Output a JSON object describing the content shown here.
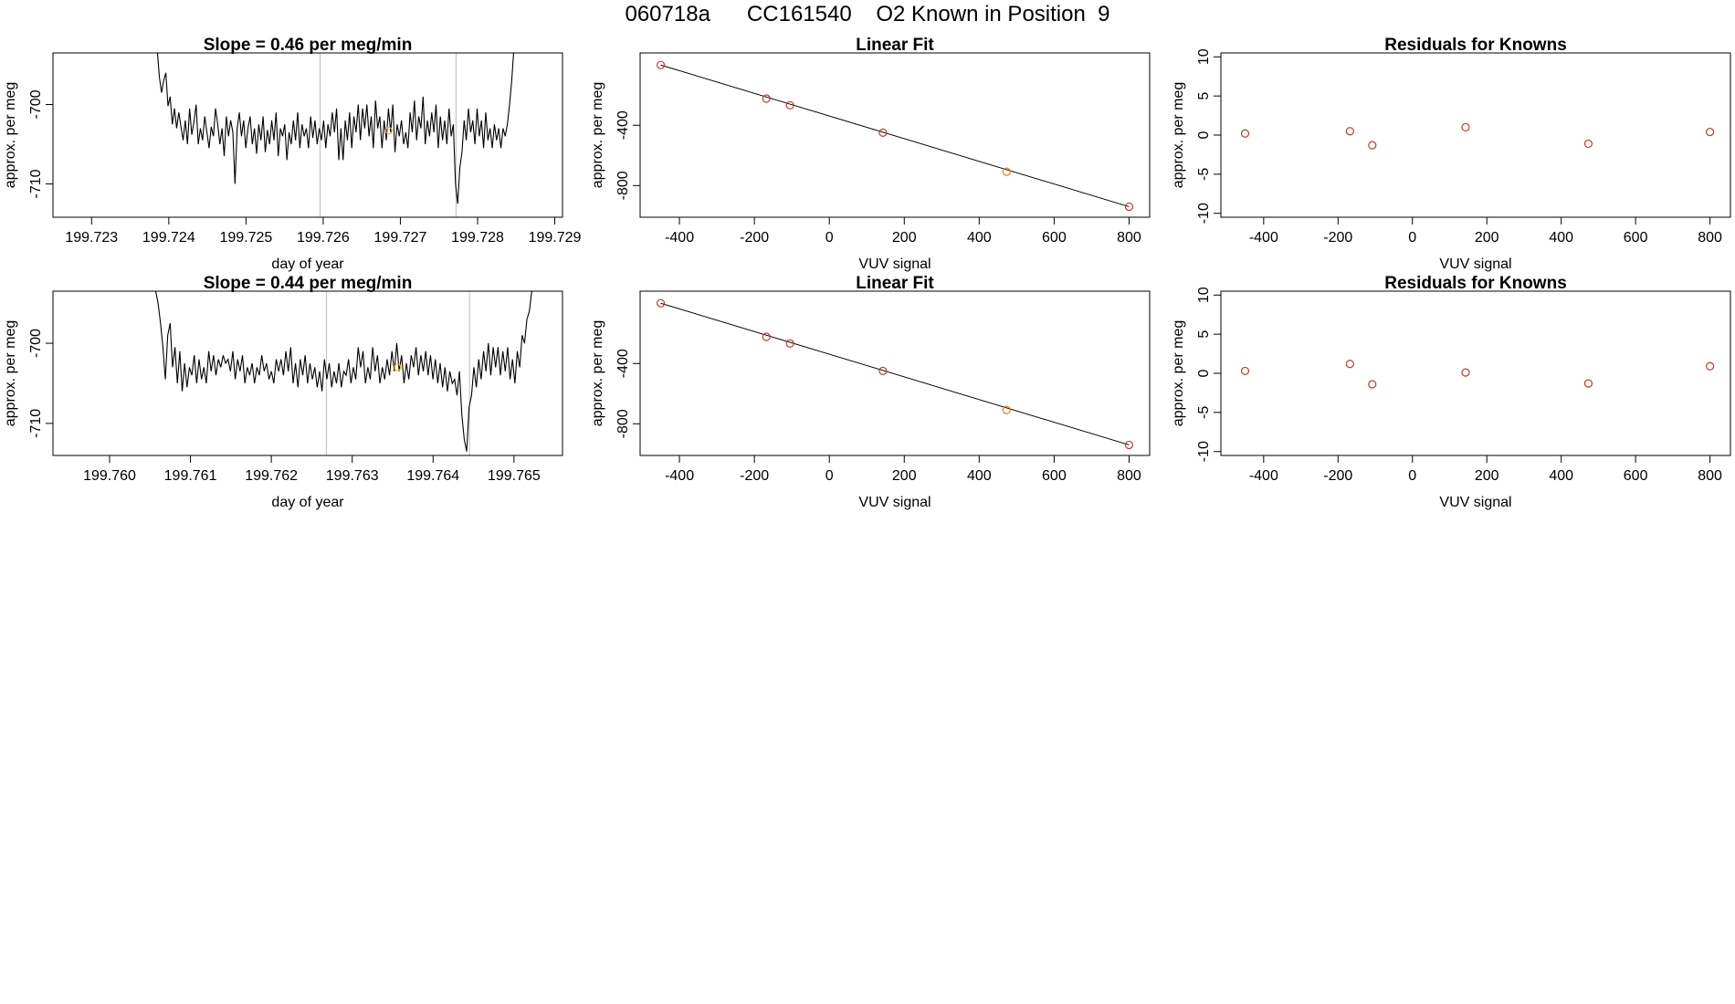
{
  "page": {
    "title": "060718a      CC161540    O2 Known in Position  9"
  },
  "chart_data": [
    {
      "type": "line",
      "title": "Slope =  0.46  per meg/min",
      "xlabel": "day of year",
      "ylabel": "approx. per meg",
      "xlim": [
        199.7225,
        199.7291
      ],
      "ylim": [
        -714.2,
        -693.5
      ],
      "xticks": [
        199.723,
        199.724,
        199.725,
        199.726,
        199.727,
        199.728,
        199.729
      ],
      "xtick_labels": [
        "199.723",
        "199.724",
        "199.725",
        "199.726",
        "199.727",
        "199.728",
        "199.729"
      ],
      "yticks": [
        -710,
        -700
      ],
      "ytick_labels": [
        "-710",
        "-700"
      ],
      "vlines": [
        199.72596,
        199.72772
      ],
      "t_start": 199.72385,
      "t_end": 199.72847,
      "series": [
        {
          "values": [
            -693.0,
            -696.5,
            -698.5,
            -697.0,
            -696.0,
            -700.2,
            -699.0,
            -702.5,
            -700.5,
            -703.0,
            -701.0,
            -702.8,
            -704.5,
            -702.0,
            -705.0,
            -700.5,
            -703.8,
            -702.2,
            -700.0,
            -705.0,
            -703.0,
            -704.5,
            -701.5,
            -703.5,
            -705.5,
            -702.8,
            -704.0,
            -700.5,
            -702.5,
            -705.0,
            -703.0,
            -706.5,
            -701.5,
            -704.0,
            -702.0,
            -703.5,
            -710.0,
            -703.0,
            -701.0,
            -704.0,
            -702.0,
            -705.5,
            -703.0,
            -701.5,
            -705.0,
            -703.0,
            -706.2,
            -702.5,
            -704.5,
            -701.5,
            -706.0,
            -703.2,
            -705.0,
            -702.0,
            -704.5,
            -701.0,
            -706.5,
            -703.0,
            -704.0,
            -702.5,
            -707.0,
            -703.5,
            -705.0,
            -702.0,
            -704.5,
            -701.0,
            -705.5,
            -702.5,
            -704.0,
            -703.0,
            -705.5,
            -701.5,
            -704.2,
            -702.0,
            -705.0,
            -703.0,
            -704.5,
            -702.0,
            -705.5,
            -702.5,
            -704.0,
            -701.0,
            -703.5,
            -700.5,
            -707.0,
            -703.0,
            -707.0,
            -702.0,
            -704.5,
            -701.0,
            -705.5,
            -701.5,
            -703.5,
            -700.0,
            -704.5,
            -700.5,
            -703.0,
            -700.0,
            -704.0,
            -701.5,
            -705.5,
            -699.5,
            -703.0,
            -701.5,
            -705.5,
            -702.0,
            -704.5,
            -700.5,
            -703.5,
            -700.0,
            -706.0,
            -702.5,
            -704.0,
            -702.0,
            -705.0,
            -703.5,
            -705.5,
            -701.0,
            -703.5,
            -699.5,
            -704.5,
            -701.5,
            -703.0,
            -699.0,
            -705.0,
            -702.0,
            -704.0,
            -701.0,
            -703.5,
            -700.0,
            -705.5,
            -701.5,
            -704.5,
            -702.0,
            -705.0,
            -700.5,
            -704.0,
            -702.5,
            -710.0,
            -712.5,
            -708.0,
            -706.0,
            -702.0,
            -704.5,
            -700.5,
            -703.5,
            -702.0,
            -705.0,
            -700.5,
            -704.0,
            -702.0,
            -705.5,
            -701.0,
            -704.5,
            -703.0,
            -705.5,
            -702.5,
            -704.5,
            -703.0,
            -705.5,
            -703.0,
            -704.0,
            -702.5,
            -700.0,
            -697.0,
            -693.0
          ],
          "color": "#000000"
        }
      ],
      "highlight_point": {
        "x": 199.72685,
        "y": -703.3,
        "color": "#f0b429"
      }
    },
    {
      "type": "scatter",
      "title": "Linear Fit",
      "xlabel": "VUV signal",
      "ylabel": "approx. per meg",
      "xlim": [
        -505,
        855
      ],
      "ylim": [
        -1010,
        80
      ],
      "xticks": [
        -400,
        -200,
        0,
        200,
        400,
        600,
        800
      ],
      "xtick_labels": [
        "-400",
        "-200",
        "0",
        "200",
        "400",
        "600",
        "800"
      ],
      "yticks": [
        -800,
        -400
      ],
      "ytick_labels": [
        "-800",
        "-400"
      ],
      "fit_line": {
        "x": [
          -450,
          800
        ],
        "y": [
          0,
          -940
        ]
      },
      "points": {
        "x": [
          -450,
          -168,
          -105,
          143,
          473,
          800
        ],
        "y": [
          0,
          -223,
          -267,
          -449,
          -708,
          -940
        ],
        "colors": [
          "#c0392b",
          "#c0392b",
          "#c0392b",
          "#c0392b",
          "#e67e22",
          "#c0392b"
        ]
      }
    },
    {
      "type": "scatter",
      "title": "Residuals for Knowns",
      "xlabel": "VUV signal",
      "ylabel": "approx. per meg",
      "xlim": [
        -515,
        855
      ],
      "ylim": [
        -10.5,
        10.5
      ],
      "xticks": [
        -400,
        -200,
        0,
        200,
        400,
        600,
        800
      ],
      "xtick_labels": [
        "-400",
        "-200",
        "0",
        "200",
        "400",
        "600",
        "800"
      ],
      "yticks": [
        -10,
        -5,
        0,
        5,
        10
      ],
      "ytick_labels": [
        "-10",
        "-5",
        "0",
        "5",
        "10"
      ],
      "points": {
        "x": [
          -450,
          -168,
          -108,
          143,
          473,
          800
        ],
        "y": [
          0.2,
          0.5,
          -1.3,
          1.0,
          -1.1,
          0.4
        ],
        "colors": [
          "#c0392b",
          "#c0392b",
          "#c0392b",
          "#c0392b",
          "#c0392b",
          "#c0392b"
        ]
      }
    },
    {
      "type": "line",
      "title": "Slope =  0.44  per meg/min",
      "xlabel": "day of year",
      "ylabel": "approx. per meg",
      "xlim": [
        199.7593,
        199.7656
      ],
      "ylim": [
        -714.0,
        -693.5
      ],
      "xticks": [
        199.76,
        199.761,
        199.762,
        199.763,
        199.764,
        199.765
      ],
      "xtick_labels": [
        "199.760",
        "199.761",
        "199.762",
        "199.763",
        "199.764",
        "199.765"
      ],
      "yticks": [
        -710,
        -700
      ],
      "ytick_labels": [
        "-710",
        "-700"
      ],
      "vlines": [
        199.76268,
        199.76445
      ],
      "t_start": 199.76057,
      "t_end": 199.76522,
      "series": [
        {
          "values": [
            -693.5,
            -695.0,
            -697.5,
            -700.5,
            -704.5,
            -699.0,
            -697.5,
            -703.0,
            -700.5,
            -705.0,
            -701.0,
            -706.0,
            -702.5,
            -705.5,
            -703.0,
            -704.0,
            -701.5,
            -705.0,
            -702.0,
            -704.5,
            -703.0,
            -705.0,
            -701.0,
            -703.5,
            -701.5,
            -704.0,
            -702.0,
            -703.0,
            -701.5,
            -702.5,
            -702.0,
            -703.5,
            -701.0,
            -704.5,
            -702.0,
            -703.5,
            -701.5,
            -705.0,
            -703.0,
            -704.0,
            -702.5,
            -705.0,
            -703.0,
            -704.0,
            -701.5,
            -703.5,
            -702.5,
            -704.5,
            -703.5,
            -705.0,
            -702.0,
            -703.5,
            -702.0,
            -704.0,
            -701.0,
            -703.5,
            -700.5,
            -705.0,
            -702.5,
            -705.5,
            -702.0,
            -704.0,
            -701.5,
            -705.0,
            -702.5,
            -704.5,
            -703.0,
            -705.5,
            -703.5,
            -706.0,
            -702.0,
            -704.5,
            -702.5,
            -705.5,
            -703.5,
            -705.0,
            -702.5,
            -705.5,
            -703.5,
            -704.0,
            -702.0,
            -705.0,
            -703.0,
            -704.5,
            -700.5,
            -703.0,
            -701.0,
            -705.0,
            -703.0,
            -704.5,
            -700.5,
            -703.5,
            -701.5,
            -705.0,
            -703.0,
            -704.5,
            -702.0,
            -704.0,
            -701.0,
            -703.5,
            -700.0,
            -703.5,
            -701.5,
            -705.0,
            -702.5,
            -704.5,
            -701.5,
            -703.0,
            -700.5,
            -704.0,
            -701.5,
            -703.5,
            -701.0,
            -704.0,
            -701.5,
            -704.5,
            -702.0,
            -705.0,
            -702.5,
            -705.5,
            -703.0,
            -706.0,
            -703.5,
            -705.0,
            -704.5,
            -706.5,
            -703.5,
            -709.0,
            -712.0,
            -713.5,
            -708.0,
            -706.5,
            -703.0,
            -705.5,
            -702.0,
            -704.5,
            -701.0,
            -703.5,
            -700.0,
            -704.0,
            -700.5,
            -703.0,
            -700.5,
            -704.0,
            -701.0,
            -703.5,
            -700.5,
            -704.5,
            -702.0,
            -705.0,
            -701.0,
            -703.0,
            -699.0,
            -700.0,
            -697.0,
            -696.0,
            -693.5
          ],
          "color": "#000000"
        }
      ],
      "highlight_point": {
        "x": 199.76356,
        "y": -703.0,
        "color": "#f0b429"
      }
    },
    {
      "type": "scatter",
      "title": "Linear Fit",
      "xlabel": "VUV signal",
      "ylabel": "approx. per meg",
      "xlim": [
        -505,
        855
      ],
      "ylim": [
        -1010,
        80
      ],
      "xticks": [
        -400,
        -200,
        0,
        200,
        400,
        600,
        800
      ],
      "xtick_labels": [
        "-400",
        "-200",
        "0",
        "200",
        "400",
        "600",
        "800"
      ],
      "yticks": [
        -800,
        -400
      ],
      "ytick_labels": [
        "-800",
        "-400"
      ],
      "fit_line": {
        "x": [
          -450,
          800
        ],
        "y": [
          0,
          -940
        ]
      },
      "points": {
        "x": [
          -450,
          -168,
          -105,
          143,
          473,
          800
        ],
        "y": [
          0,
          -223,
          -267,
          -449,
          -708,
          -940
        ],
        "colors": [
          "#c0392b",
          "#c0392b",
          "#c0392b",
          "#c0392b",
          "#e67e22",
          "#c0392b"
        ]
      }
    },
    {
      "type": "scatter",
      "title": "Residuals for Knowns",
      "xlabel": "VUV signal",
      "ylabel": "approx. per meg",
      "xlim": [
        -515,
        855
      ],
      "ylim": [
        -10.5,
        10.5
      ],
      "xticks": [
        -400,
        -200,
        0,
        200,
        400,
        600,
        800
      ],
      "xtick_labels": [
        "-400",
        "-200",
        "0",
        "200",
        "400",
        "600",
        "800"
      ],
      "yticks": [
        -10,
        -5,
        0,
        5,
        10
      ],
      "ytick_labels": [
        "-10",
        "-5",
        "0",
        "5",
        "10"
      ],
      "points": {
        "x": [
          -450,
          -168,
          -108,
          143,
          473,
          800
        ],
        "y": [
          0.3,
          1.2,
          -1.4,
          0.1,
          -1.3,
          0.9
        ],
        "colors": [
          "#c0392b",
          "#c0392b",
          "#c0392b",
          "#c0392b",
          "#c0392b",
          "#c0392b"
        ]
      }
    }
  ]
}
